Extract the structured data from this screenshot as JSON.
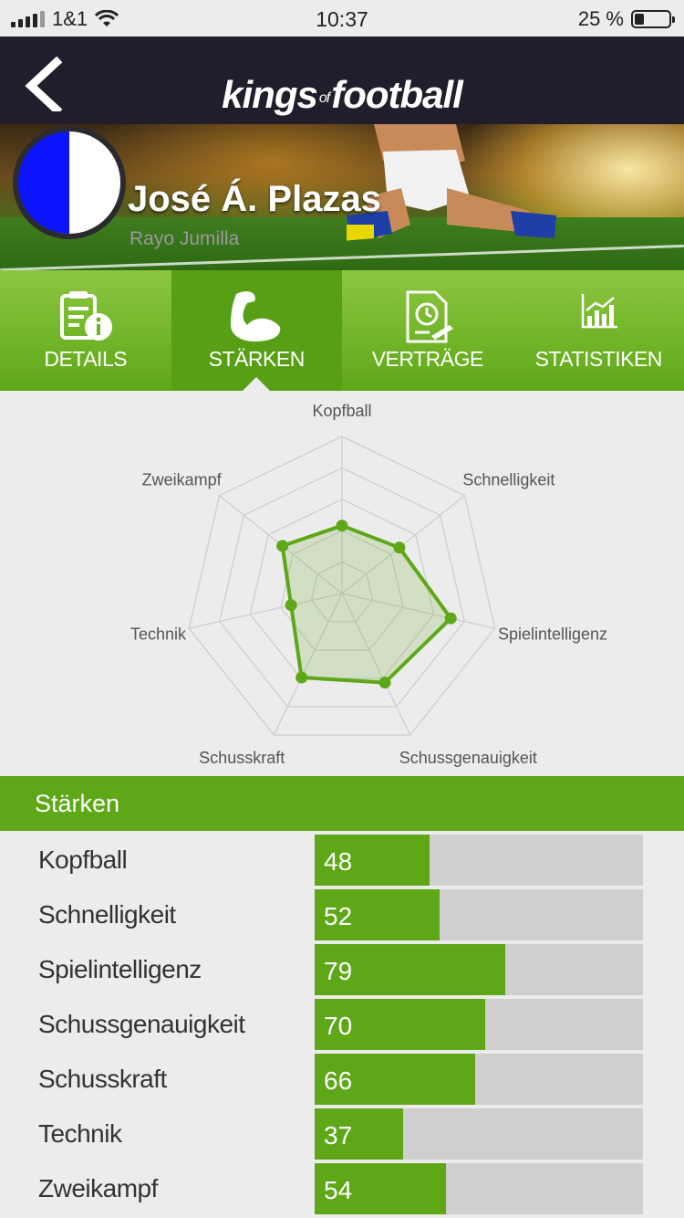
{
  "status": {
    "carrier": "1&1",
    "time": "10:37",
    "battery": "25 %",
    "battery_level": 0.25
  },
  "nav": {
    "logo_main_1": "kings",
    "logo_of": "of",
    "logo_main_2": "football"
  },
  "player": {
    "name": "José Á. Plazas",
    "club": "Rayo Jumilla",
    "club_colors": [
      "#0a14ff",
      "#ffffff"
    ]
  },
  "tabs": [
    {
      "label": "DETAILS",
      "icon": "document-info-icon"
    },
    {
      "label": "STÄRKEN",
      "icon": "flexed-arm-icon",
      "active": true
    },
    {
      "label": "VERTRÄGE",
      "icon": "contract-clock-icon"
    },
    {
      "label": "STATISTIKEN",
      "icon": "bar-chart-icon"
    }
  ],
  "section_title": "Stärken",
  "chart_data": {
    "type": "radar",
    "axes": [
      "Kopfball",
      "Schnelligkeit",
      "Spielintelligenz",
      "Schussgenauigkeit",
      "Schusskraft",
      "Technik",
      "Zweikampf"
    ],
    "values": [
      48,
      52,
      79,
      70,
      66,
      37,
      54
    ],
    "range": [
      0,
      100
    ],
    "rings": 5,
    "color": "#5ea818"
  },
  "stats": [
    {
      "label": "Kopfball",
      "value": "48",
      "fraction": 0.35
    },
    {
      "label": "Schnelligkeit",
      "value": "52",
      "fraction": 0.38
    },
    {
      "label": "Spielintelligenz",
      "value": "79",
      "fraction": 0.58
    },
    {
      "label": "Schussgenauigkeit",
      "value": "70",
      "fraction": 0.52
    },
    {
      "label": "Schusskraft",
      "value": "66",
      "fraction": 0.49
    },
    {
      "label": "Technik",
      "value": "37",
      "fraction": 0.27
    },
    {
      "label": "Zweikampf",
      "value": "54",
      "fraction": 0.4
    }
  ]
}
